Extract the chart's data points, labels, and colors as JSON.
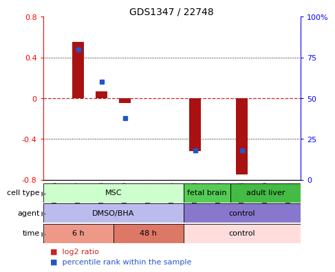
{
  "title": "GDS1347 / 22748",
  "samples": [
    "GSM60436",
    "GSM60437",
    "GSM60438",
    "GSM60440",
    "GSM60442",
    "GSM60444",
    "GSM60433",
    "GSM60434",
    "GSM60448",
    "GSM60450",
    "GSM60451"
  ],
  "log2_ratio": [
    0.0,
    0.55,
    0.07,
    -0.05,
    0.0,
    0.0,
    -0.52,
    0.0,
    -0.75,
    0.0,
    0.0
  ],
  "percentile_rank": [
    null,
    80,
    60,
    38,
    null,
    null,
    18,
    null,
    18,
    null,
    null
  ],
  "ylim": [
    -0.8,
    0.8
  ],
  "y_ticks_left": [
    -0.8,
    -0.4,
    0.0,
    0.4,
    0.8
  ],
  "y_ticks_right_labels": [
    "0",
    "25",
    "50",
    "75",
    "100%"
  ],
  "bar_color": "#aa1111",
  "dot_color": "#2255cc",
  "zero_line_color": "#cc2222",
  "cell_type_groups": [
    {
      "label": "MSC",
      "start": 0,
      "end": 5,
      "color": "#ccffcc"
    },
    {
      "label": "fetal brain",
      "start": 6,
      "end": 7,
      "color": "#55cc55"
    },
    {
      "label": "adult liver",
      "start": 8,
      "end": 10,
      "color": "#44bb44"
    }
  ],
  "agent_groups": [
    {
      "label": "DMSO/BHA",
      "start": 0,
      "end": 5,
      "color": "#bbbbee"
    },
    {
      "label": "control",
      "start": 6,
      "end": 10,
      "color": "#8877cc"
    }
  ],
  "time_groups": [
    {
      "label": "6 h",
      "start": 0,
      "end": 2,
      "color": "#ee9988"
    },
    {
      "label": "48 h",
      "start": 3,
      "end": 5,
      "color": "#dd7766"
    },
    {
      "label": "control",
      "start": 6,
      "end": 10,
      "color": "#ffdddd"
    }
  ],
  "row_labels": [
    "cell type",
    "agent",
    "time"
  ],
  "legend_red_label": "log2 ratio",
  "legend_blue_label": "percentile rank within the sample",
  "legend_red_color": "#cc2222",
  "legend_blue_color": "#2255cc"
}
